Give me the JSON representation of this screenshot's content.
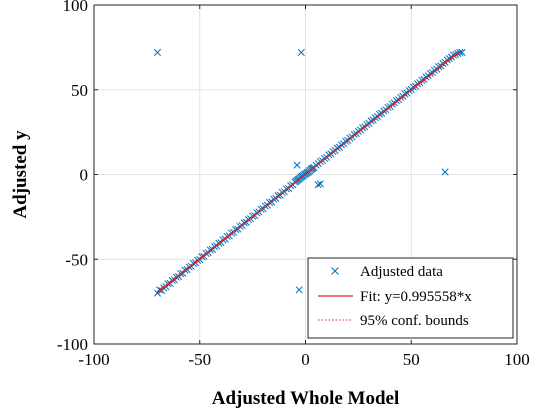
{
  "chart_data": {
    "type": "scatter",
    "xlabel": "Adjusted Whole Model",
    "ylabel": "Adjusted y",
    "xlim": [
      -100,
      100
    ],
    "ylim": [
      -100,
      100
    ],
    "xticks": [
      -100,
      -50,
      0,
      50,
      100
    ],
    "yticks": [
      -100,
      -50,
      0,
      50,
      100
    ],
    "xtick_labels": [
      "-100",
      "-50",
      "0",
      "50",
      "100"
    ],
    "ytick_labels": [
      "-100",
      "-50",
      "0",
      "50",
      "100"
    ],
    "grid": true,
    "legend_position": "bottom-right",
    "series": [
      {
        "name": "Adjusted data",
        "marker": "x",
        "color": "#0072BD",
        "points": [
          [
            -70,
            -70
          ],
          [
            -69,
            -68
          ],
          [
            -68,
            -68.5
          ],
          [
            -67,
            -67
          ],
          [
            -66,
            -66.2
          ],
          [
            -65,
            -64.5
          ],
          [
            -64,
            -64.3
          ],
          [
            -63,
            -62.5
          ],
          [
            -62,
            -62.1
          ],
          [
            -61,
            -60.6
          ],
          [
            -60,
            -60.2
          ],
          [
            -59,
            -58.5
          ],
          [
            -58,
            -58.3
          ],
          [
            -57,
            -56.4
          ],
          [
            -56,
            -56.1
          ],
          [
            -55,
            -54.6
          ],
          [
            -54,
            -54.2
          ],
          [
            -53,
            -52.5
          ],
          [
            -52,
            -52.1
          ],
          [
            -51,
            -50.6
          ],
          [
            -50,
            -50.2
          ],
          [
            -49,
            -48.5
          ],
          [
            -48,
            -48.3
          ],
          [
            -47,
            -46.6
          ],
          [
            -46,
            -46.1
          ],
          [
            -45,
            -44.5
          ],
          [
            -44,
            -44.2
          ],
          [
            -43,
            -42.6
          ],
          [
            -42,
            -42.1
          ],
          [
            -41,
            -40.5
          ],
          [
            -40,
            -40.2
          ],
          [
            -39,
            -38.6
          ],
          [
            -38,
            -38.1
          ],
          [
            -37,
            -36.5
          ],
          [
            -36,
            -36.2
          ],
          [
            -35,
            -34.6
          ],
          [
            -34,
            -34.1
          ],
          [
            -33,
            -32.5
          ],
          [
            -32,
            -32.2
          ],
          [
            -31,
            -30.6
          ],
          [
            -30,
            -30.1
          ],
          [
            -29,
            -28.5
          ],
          [
            -28,
            -28.2
          ],
          [
            -27,
            -26.6
          ],
          [
            -26,
            -26.1
          ],
          [
            -25,
            -24.5
          ],
          [
            -24,
            -24.2
          ],
          [
            -23,
            -22.6
          ],
          [
            -22,
            -22.1
          ],
          [
            -21,
            -20.5
          ],
          [
            -20,
            -20.2
          ],
          [
            -19,
            -18.6
          ],
          [
            -18,
            -18.1
          ],
          [
            -17,
            -16.5
          ],
          [
            -16,
            -16.2
          ],
          [
            -15,
            -14.6
          ],
          [
            -14,
            -14.1
          ],
          [
            -13,
            -12.5
          ],
          [
            -12,
            -12.2
          ],
          [
            -11,
            -10.6
          ],
          [
            -10,
            -10.1
          ],
          [
            -9,
            -8.5
          ],
          [
            -8,
            -8.2
          ],
          [
            -7,
            -6.6
          ],
          [
            -6,
            -6.1
          ],
          [
            -5,
            -4.5
          ],
          [
            -4.5,
            -4
          ],
          [
            -4,
            -3.5
          ],
          [
            -3.5,
            -3
          ],
          [
            -3,
            -2.6
          ],
          [
            -2.5,
            -2
          ],
          [
            -2,
            -1.5
          ],
          [
            -1.5,
            -1
          ],
          [
            -1,
            -0.6
          ],
          [
            -0.5,
            0
          ],
          [
            0,
            0.3
          ],
          [
            0.5,
            0.8
          ],
          [
            1,
            1.2
          ],
          [
            1.5,
            1.6
          ],
          [
            2,
            2.3
          ],
          [
            2.5,
            2.8
          ],
          [
            3,
            3.3
          ],
          [
            3.5,
            3.8
          ],
          [
            4,
            4.2
          ],
          [
            5,
            5.5
          ],
          [
            6,
            6.4
          ],
          [
            7,
            7.6
          ],
          [
            8,
            8.2
          ],
          [
            9,
            9.5
          ],
          [
            10,
            10.1
          ],
          [
            11,
            11.6
          ],
          [
            12,
            12.2
          ],
          [
            13,
            13.5
          ],
          [
            14,
            14.2
          ],
          [
            15,
            15.6
          ],
          [
            16,
            16.1
          ],
          [
            17,
            17.5
          ],
          [
            18,
            18.2
          ],
          [
            19,
            19.6
          ],
          [
            20,
            20.1
          ],
          [
            21,
            21.5
          ],
          [
            22,
            22.2
          ],
          [
            23,
            23.6
          ],
          [
            24,
            24.1
          ],
          [
            25,
            25.5
          ],
          [
            26,
            26.2
          ],
          [
            27,
            27.6
          ],
          [
            28,
            28.1
          ],
          [
            29,
            29.5
          ],
          [
            30,
            30.2
          ],
          [
            31,
            31.6
          ],
          [
            32,
            32.1
          ],
          [
            33,
            33.5
          ],
          [
            34,
            34.2
          ],
          [
            35,
            35.6
          ],
          [
            36,
            36.1
          ],
          [
            37,
            37.5
          ],
          [
            38,
            38.2
          ],
          [
            39,
            39.6
          ],
          [
            40,
            40.1
          ],
          [
            41,
            41.5
          ],
          [
            42,
            42.2
          ],
          [
            43,
            43.6
          ],
          [
            44,
            44.1
          ],
          [
            45,
            45.5
          ],
          [
            46,
            46.2
          ],
          [
            47,
            47.6
          ],
          [
            48,
            48.1
          ],
          [
            49,
            49.5
          ],
          [
            50,
            50.2
          ],
          [
            51,
            51.6
          ],
          [
            52,
            52.1
          ],
          [
            53,
            53.5
          ],
          [
            54,
            54.2
          ],
          [
            55,
            55.6
          ],
          [
            56,
            56.1
          ],
          [
            57,
            57.5
          ],
          [
            58,
            58.2
          ],
          [
            59,
            59.6
          ],
          [
            60,
            60.1
          ],
          [
            61,
            61.5
          ],
          [
            62,
            62.2
          ],
          [
            63,
            63.6
          ],
          [
            64,
            64.1
          ],
          [
            65,
            65.5
          ],
          [
            66,
            66.2
          ],
          [
            67,
            67.6
          ],
          [
            68,
            68.4
          ],
          [
            69,
            69.3
          ],
          [
            70,
            70.5
          ],
          [
            71,
            70.8
          ],
          [
            72,
            71.4
          ],
          [
            73,
            72
          ],
          [
            74,
            72
          ],
          [
            -70,
            72
          ],
          [
            -2,
            72
          ],
          [
            66,
            1.5
          ],
          [
            -3,
            -68
          ],
          [
            -4,
            5.5
          ],
          [
            6,
            -6
          ],
          [
            7,
            -5.5
          ],
          [
            3,
            3.5
          ]
        ]
      },
      {
        "name": "Fit: y=0.995558*x",
        "line": "solid",
        "color": "#D62728",
        "slope": 0.995558,
        "x_range": [
          -70,
          73
        ]
      },
      {
        "name": "95% conf. bounds",
        "line": "dotted",
        "color": "#D62728",
        "slope_bounds": [
          0.985,
          1.006
        ],
        "x_range": [
          -70,
          73
        ]
      }
    ]
  }
}
